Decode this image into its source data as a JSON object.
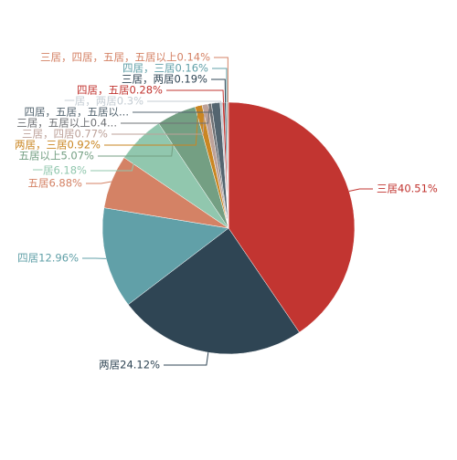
{
  "chart_data": {
    "type": "pie",
    "categories": [
      "三居",
      "两居",
      "四居",
      "五居",
      "一居",
      "五居以上",
      "两居，三居",
      "三居，四居",
      "三居，五居以上",
      "四居，五居，五居以上",
      "一居，两居",
      "四居，五居",
      "三居，两居",
      "四居，三居",
      "三居，四居，五居，五居以上"
    ],
    "values": [
      40.51,
      24.12,
      12.96,
      6.88,
      6.18,
      5.07,
      0.92,
      0.77,
      0.42,
      1.1,
      0.3,
      0.28,
      0.19,
      0.16,
      0.14
    ],
    "value_labels": [
      "三居40.51%",
      "两居24.12%",
      "四居12.96%",
      "五居6.88%",
      "一居6.18%",
      "五居以上5.07%",
      "两居，三居0.92%",
      "三居，四居0.77%",
      "三居，五居以上0.4...",
      "四居，五居，五居以...",
      "一居，两居0.3%",
      "四居，五居0.28%",
      "三居，两居0.19%",
      "四居，三居0.16%",
      "三居，四居，五居，五居以上0.14%"
    ],
    "colors": [
      "#c23531",
      "#2f4554",
      "#61a0a8",
      "#d48265",
      "#91c7ae",
      "#749f83",
      "#ca8622",
      "#bda29a",
      "#6e7074",
      "#546570",
      "#c4ccd3",
      "#c23531",
      "#2f4554",
      "#61a0a8",
      "#d48265"
    ]
  }
}
